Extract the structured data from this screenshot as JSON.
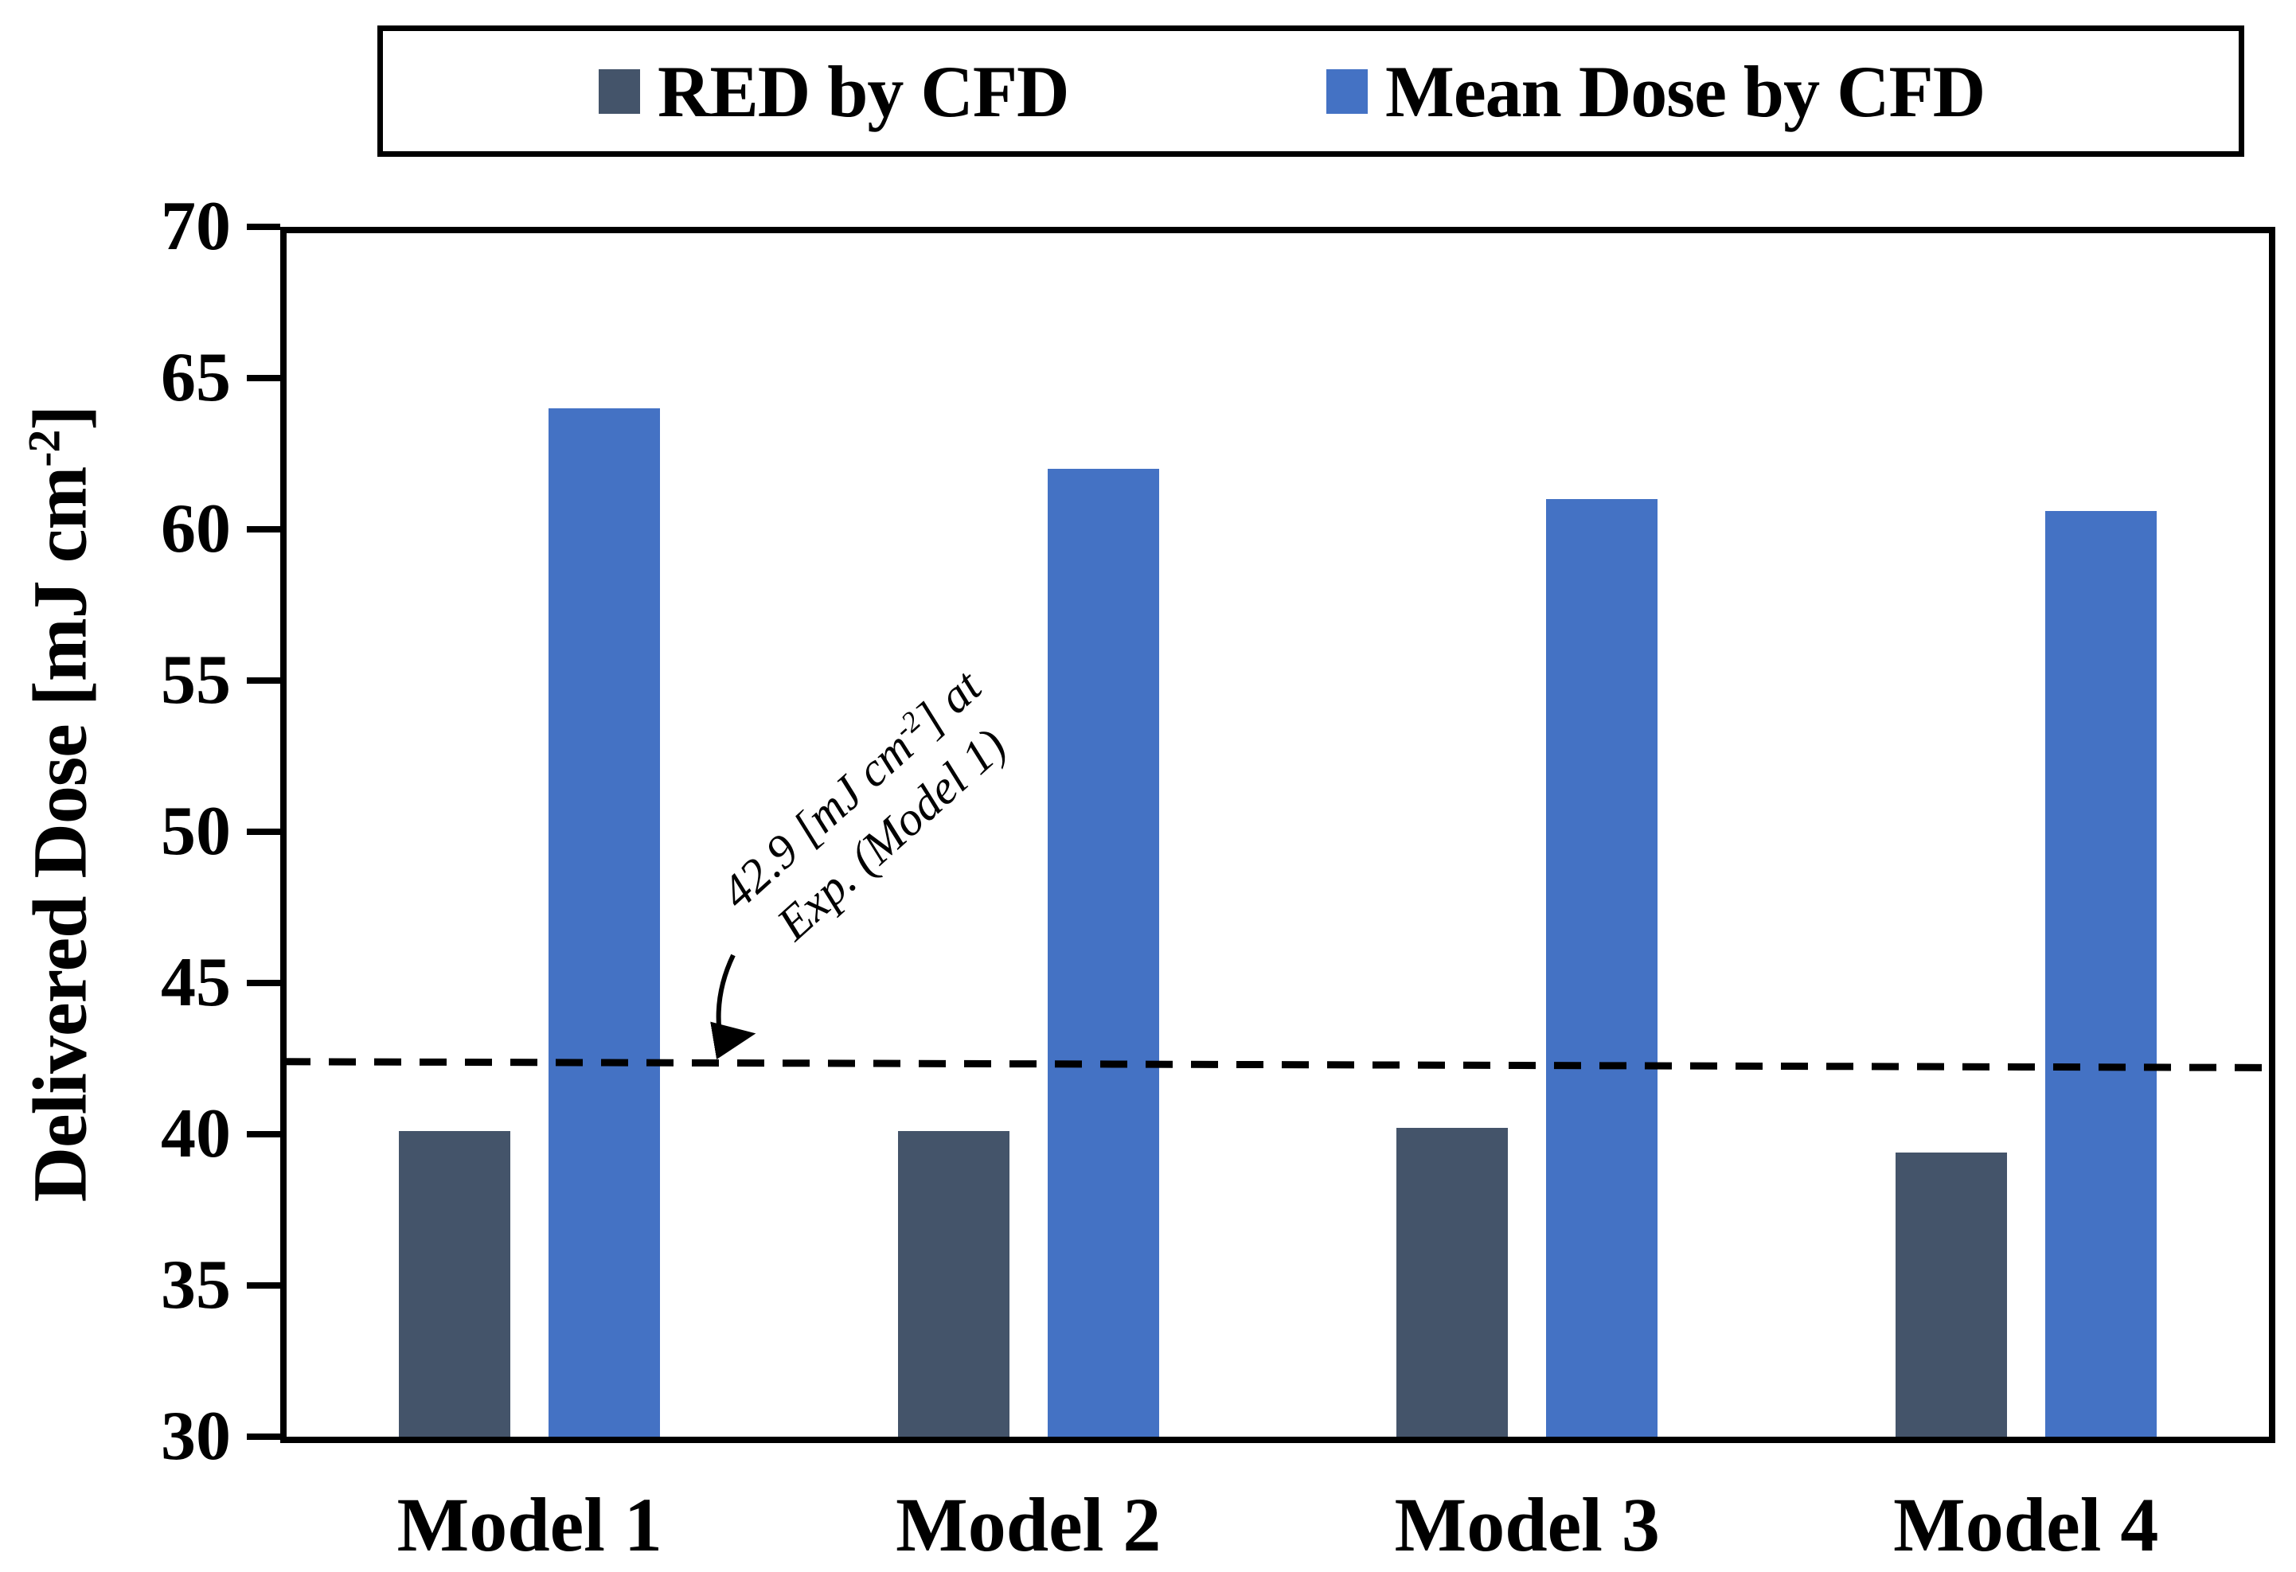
{
  "legend": {
    "items": [
      {
        "label": "RED by CFD",
        "color": "#44546A"
      },
      {
        "label": "Mean Dose by CFD",
        "color": "#4472C4"
      }
    ]
  },
  "y_axis": {
    "title_prefix": "Delivered Dose [mJ cm",
    "title_sup": "-2",
    "title_suffix": "]",
    "min": 30,
    "max": 70,
    "step": 5
  },
  "x_axis": {
    "categories": [
      "Model 1",
      "Model 2",
      "Model 3",
      "Model 4"
    ]
  },
  "annotation": {
    "line1_prefix": "42.9 [mJ cm",
    "line1_sup": "-2",
    "line1_suffix": "] at",
    "line2": "Exp. (Model 1)"
  },
  "chart_data": {
    "type": "bar",
    "categories": [
      "Model 1",
      "Model 2",
      "Model 3",
      "Model 4"
    ],
    "series": [
      {
        "name": "RED by CFD",
        "color": "#44546A",
        "values": [
          40.1,
          40.1,
          40.2,
          39.4
        ]
      },
      {
        "name": "Mean Dose by CFD",
        "color": "#4472C4",
        "values": [
          64.0,
          62.0,
          61.0,
          60.6
        ]
      }
    ],
    "title": "",
    "xlabel": "",
    "ylabel": "Delivered Dose [mJ cm-2]",
    "ylim": [
      30,
      70
    ],
    "ytick_step": 5,
    "grid": false,
    "legend_position": "top",
    "reference_line": {
      "value": 42.9,
      "drawn_left_value": 42.4,
      "drawn_right_value": 42.2,
      "style": "dashed",
      "annotation": "42.9 [mJ cm-2] at Exp. (Model 1)"
    }
  }
}
